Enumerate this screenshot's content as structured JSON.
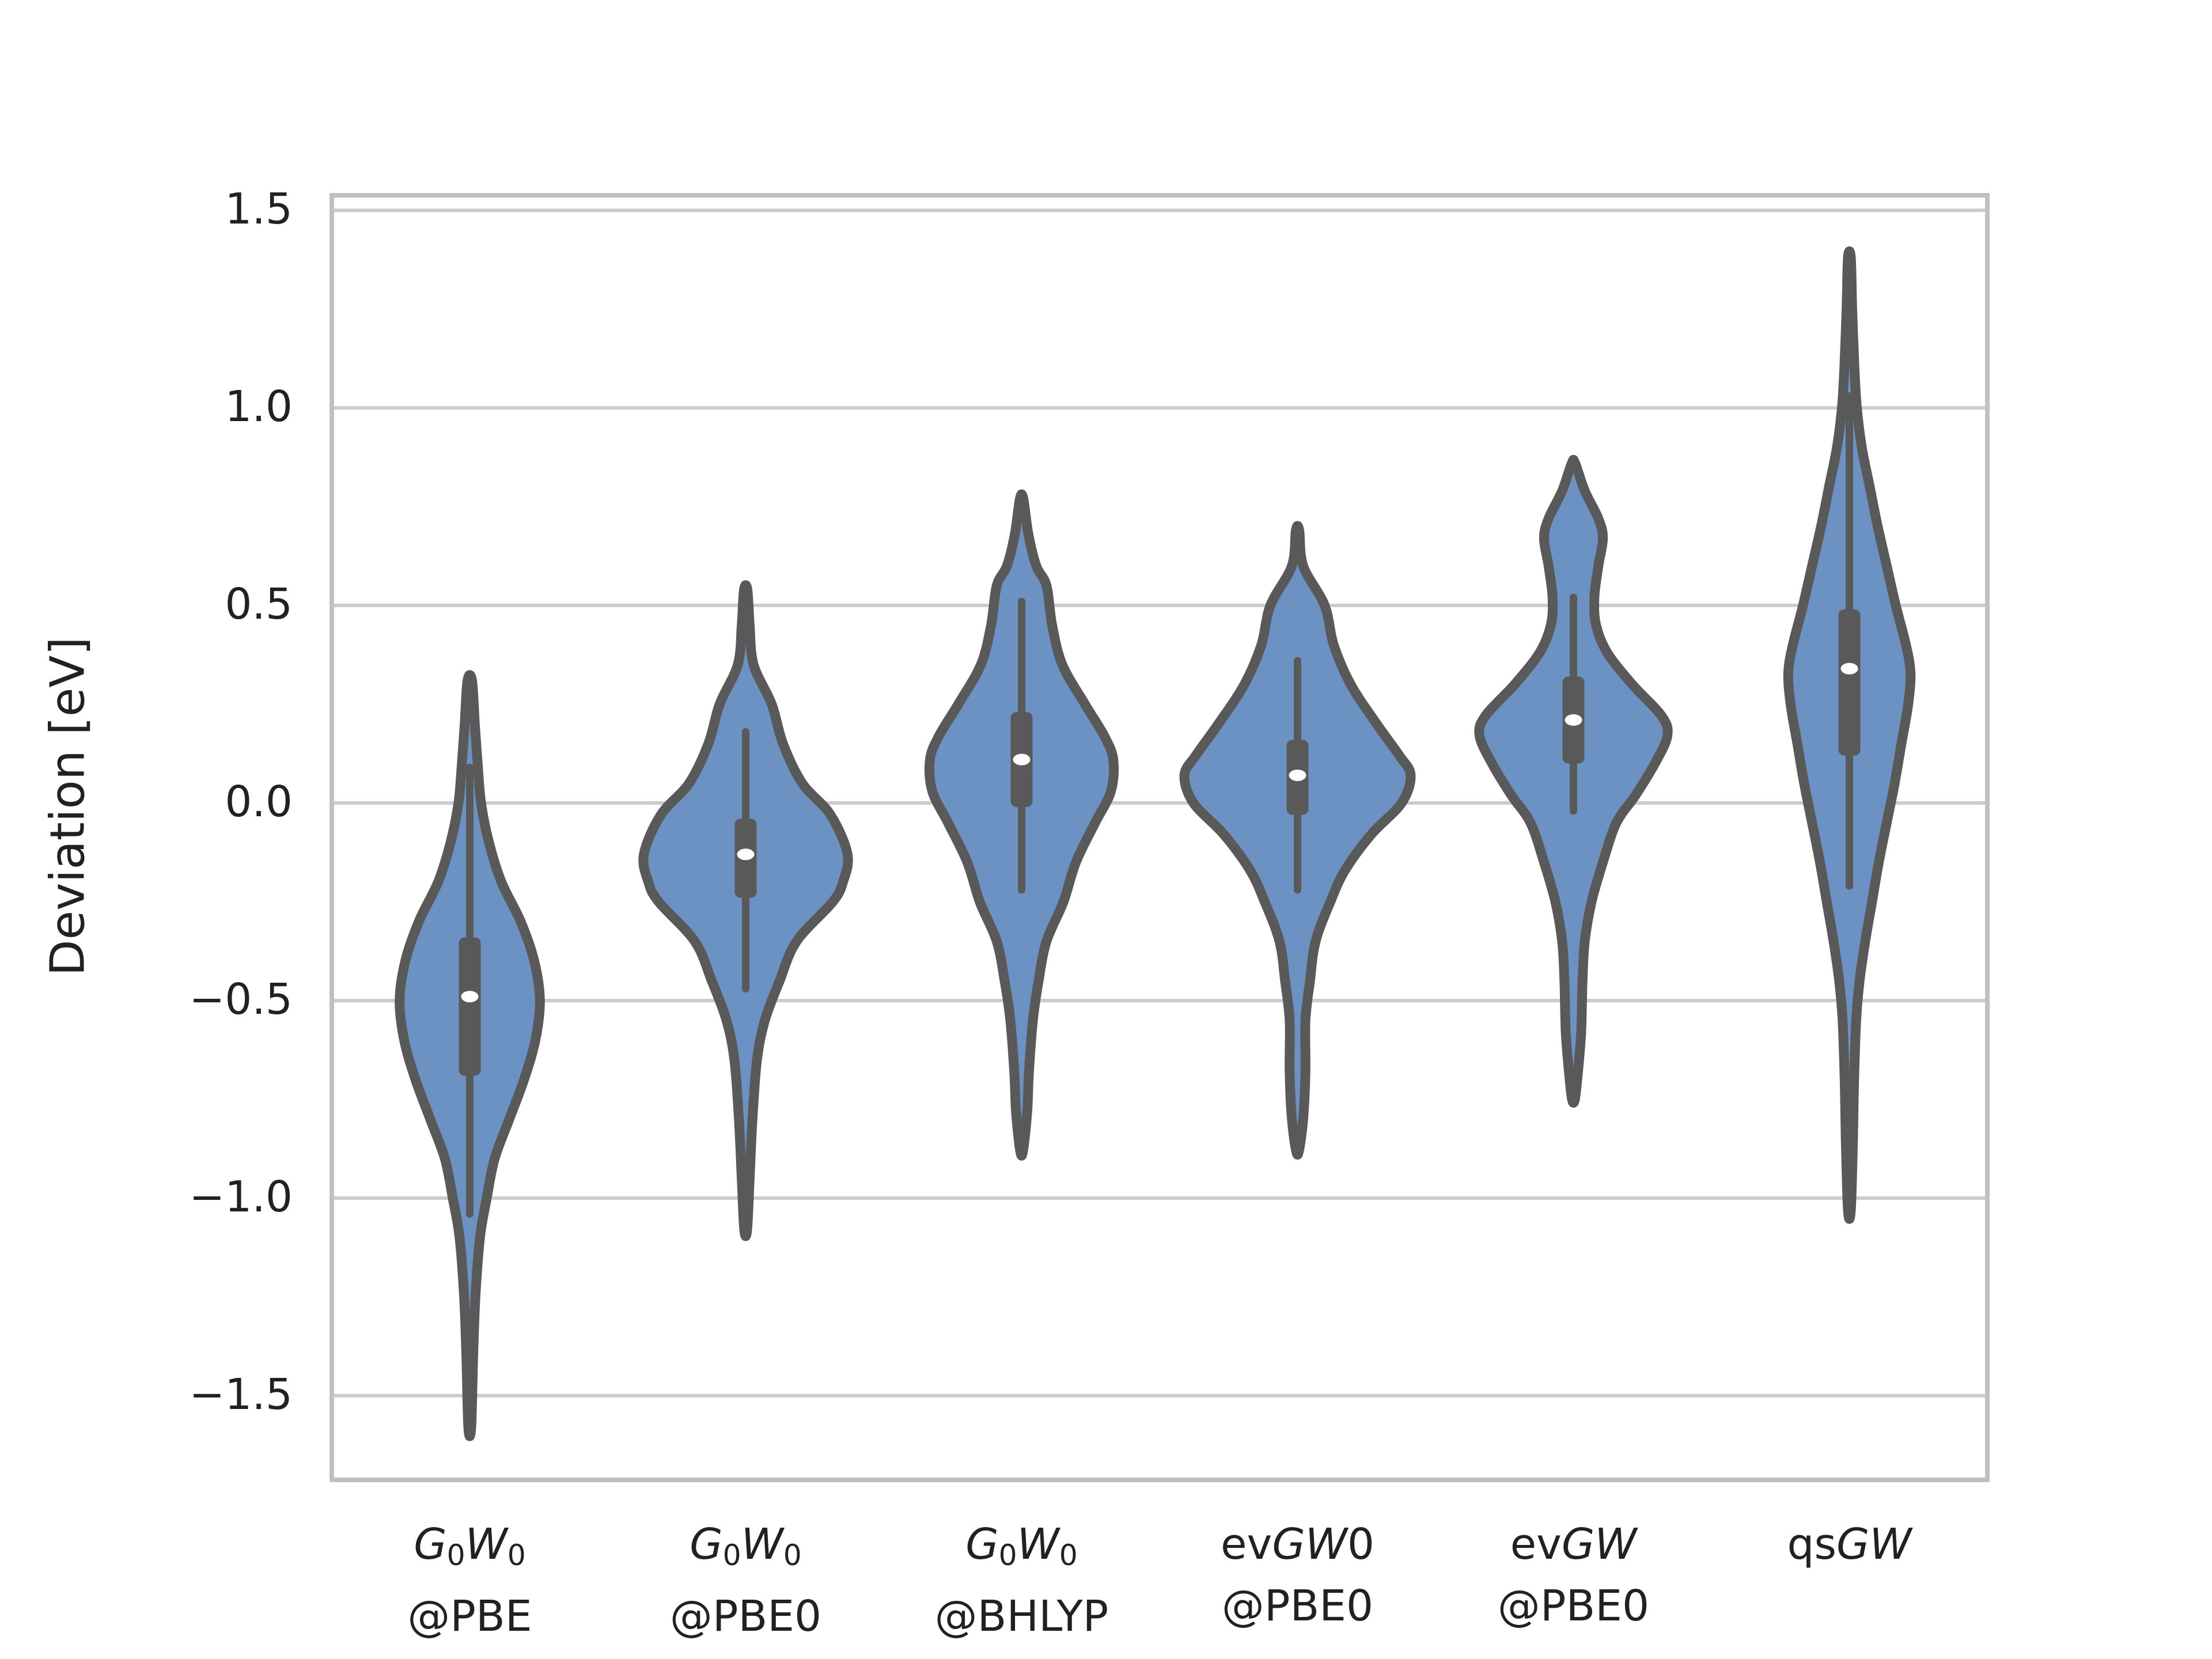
{
  "chart_data": {
    "type": "violin",
    "title": "",
    "ylabel": "Deviation [eV]",
    "xlabel": "",
    "grid": true,
    "legend": "none",
    "ylim": [
      -1.713,
      1.538
    ],
    "yticks": [
      1.5,
      1.0,
      0.5,
      0.0,
      -0.5,
      -1.0,
      -1.5
    ],
    "ytick_labels": [
      "1.5",
      "1.0",
      "0.5",
      "0.0",
      "−0.5",
      "−1.0",
      "−1.5"
    ],
    "categories": [
      "G0W0@PBE",
      "G0W0@PBE0",
      "G0W0@BHLYP",
      "evGW0@PBE0",
      "evGW@PBE0",
      "qsGW"
    ],
    "fill_color": "#6C92C4",
    "line_color": "#595959",
    "grid_color": "#CCCCCC",
    "spine_color": "#C0C0C0",
    "text_color": "#212121",
    "median_dot_color": "#FFFFFF",
    "series": [
      {
        "label_line1": [
          {
            "t": "G",
            "it": true
          },
          {
            "t": "0",
            "sub": true
          },
          {
            "t": "W",
            "it": true
          },
          {
            "t": "0",
            "sub": true
          }
        ],
        "label_line2": "@PBE",
        "stats": {
          "min": -1.58,
          "whisker_low": -1.04,
          "q1": -0.69,
          "median": -0.49,
          "q3": -0.34,
          "whisker_high": 0.09,
          "max": 0.31
        },
        "profile": [
          [
            0.31,
            0.02
          ],
          [
            0.2,
            0.045
          ],
          [
            0.1,
            0.07
          ],
          [
            0.0,
            0.1
          ],
          [
            -0.1,
            0.17
          ],
          [
            -0.2,
            0.28
          ],
          [
            -0.3,
            0.45
          ],
          [
            -0.4,
            0.57
          ],
          [
            -0.5,
            0.62
          ],
          [
            -0.6,
            0.58
          ],
          [
            -0.7,
            0.48
          ],
          [
            -0.8,
            0.35
          ],
          [
            -0.9,
            0.22
          ],
          [
            -1.0,
            0.15
          ],
          [
            -1.1,
            0.09
          ],
          [
            -1.25,
            0.05
          ],
          [
            -1.4,
            0.03
          ],
          [
            -1.58,
            0.012
          ]
        ]
      },
      {
        "label_line1": [
          {
            "t": "G",
            "it": true
          },
          {
            "t": "0",
            "sub": true
          },
          {
            "t": "W",
            "it": true
          },
          {
            "t": "0",
            "sub": true
          }
        ],
        "label_line2": "@PBE0",
        "stats": {
          "min": -1.08,
          "whisker_low": -0.47,
          "q1": -0.24,
          "median": -0.13,
          "q3": -0.04,
          "whisker_high": 0.18,
          "max": 0.54
        },
        "profile": [
          [
            0.54,
            0.015
          ],
          [
            0.45,
            0.035
          ],
          [
            0.35,
            0.07
          ],
          [
            0.25,
            0.23
          ],
          [
            0.15,
            0.33
          ],
          [
            0.05,
            0.5
          ],
          [
            -0.03,
            0.75
          ],
          [
            -0.13,
            0.9
          ],
          [
            -0.2,
            0.86
          ],
          [
            -0.25,
            0.77
          ],
          [
            -0.35,
            0.45
          ],
          [
            -0.45,
            0.3
          ],
          [
            -0.55,
            0.17
          ],
          [
            -0.65,
            0.1
          ],
          [
            -0.8,
            0.06
          ],
          [
            -0.95,
            0.035
          ],
          [
            -1.08,
            0.012
          ]
        ]
      },
      {
        "label_line1": [
          {
            "t": "G",
            "it": true
          },
          {
            "t": "0",
            "sub": true
          },
          {
            "t": "W",
            "it": true
          },
          {
            "t": "0",
            "sub": true
          }
        ],
        "label_line2": "@BHLYP",
        "stats": {
          "min": -0.88,
          "whisker_low": -0.22,
          "q1": -0.01,
          "median": 0.11,
          "q3": 0.23,
          "whisker_high": 0.51,
          "max": 0.77
        },
        "profile": [
          [
            0.77,
            0.015
          ],
          [
            0.68,
            0.06
          ],
          [
            0.6,
            0.13
          ],
          [
            0.55,
            0.22
          ],
          [
            0.45,
            0.27
          ],
          [
            0.35,
            0.36
          ],
          [
            0.25,
            0.56
          ],
          [
            0.17,
            0.73
          ],
          [
            0.11,
            0.81
          ],
          [
            0.03,
            0.79
          ],
          [
            -0.05,
            0.65
          ],
          [
            -0.15,
            0.48
          ],
          [
            -0.25,
            0.37
          ],
          [
            -0.35,
            0.22
          ],
          [
            -0.45,
            0.15
          ],
          [
            -0.55,
            0.1
          ],
          [
            -0.68,
            0.065
          ],
          [
            -0.78,
            0.05
          ],
          [
            -0.88,
            0.012
          ]
        ]
      },
      {
        "label_line1": [
          {
            "t": "ev"
          },
          {
            "t": "GW",
            "it": true
          },
          {
            "t": "0"
          }
        ],
        "label_line2": "@PBE0",
        "stats": {
          "min": -0.88,
          "whisker_low": -0.22,
          "q1": -0.03,
          "median": 0.07,
          "q3": 0.16,
          "whisker_high": 0.36,
          "max": 0.69
        },
        "profile": [
          [
            0.69,
            0.015
          ],
          [
            0.6,
            0.05
          ],
          [
            0.5,
            0.24
          ],
          [
            0.4,
            0.32
          ],
          [
            0.3,
            0.47
          ],
          [
            0.2,
            0.7
          ],
          [
            0.12,
            0.9
          ],
          [
            0.07,
            1.0
          ],
          [
            0.0,
            0.92
          ],
          [
            -0.08,
            0.65
          ],
          [
            -0.17,
            0.42
          ],
          [
            -0.25,
            0.29
          ],
          [
            -0.35,
            0.16
          ],
          [
            -0.45,
            0.11
          ],
          [
            -0.55,
            0.07
          ],
          [
            -0.68,
            0.07
          ],
          [
            -0.8,
            0.05
          ],
          [
            -0.88,
            0.012
          ]
        ]
      },
      {
        "label_line1": [
          {
            "t": "ev"
          },
          {
            "t": "GW",
            "it": true
          }
        ],
        "label_line2": "@PBE0",
        "stats": {
          "min": -0.75,
          "whisker_low": -0.02,
          "q1": 0.1,
          "median": 0.21,
          "q3": 0.32,
          "whisker_high": 0.52,
          "max": 0.86
        },
        "profile": [
          [
            0.86,
            0.015
          ],
          [
            0.79,
            0.1
          ],
          [
            0.72,
            0.22
          ],
          [
            0.67,
            0.26
          ],
          [
            0.6,
            0.22
          ],
          [
            0.52,
            0.185
          ],
          [
            0.45,
            0.2
          ],
          [
            0.38,
            0.3
          ],
          [
            0.3,
            0.52
          ],
          [
            0.22,
            0.78
          ],
          [
            0.17,
            0.83
          ],
          [
            0.1,
            0.72
          ],
          [
            0.02,
            0.55
          ],
          [
            -0.05,
            0.38
          ],
          [
            -0.15,
            0.26
          ],
          [
            -0.25,
            0.16
          ],
          [
            -0.35,
            0.1
          ],
          [
            -0.45,
            0.08
          ],
          [
            -0.58,
            0.068
          ],
          [
            -0.68,
            0.04
          ],
          [
            -0.75,
            0.012
          ]
        ]
      },
      {
        "label_line1": [
          {
            "t": "qs"
          },
          {
            "t": "GW",
            "it": true
          }
        ],
        "label_line2": "",
        "stats": {
          "min": -1.03,
          "whisker_low": -0.21,
          "q1": 0.12,
          "median": 0.34,
          "q3": 0.49,
          "whisker_high": 1.03,
          "max": 1.38
        },
        "profile": [
          [
            1.38,
            0.012
          ],
          [
            1.25,
            0.025
          ],
          [
            1.1,
            0.045
          ],
          [
            1.0,
            0.066
          ],
          [
            0.9,
            0.11
          ],
          [
            0.8,
            0.18
          ],
          [
            0.7,
            0.25
          ],
          [
            0.6,
            0.33
          ],
          [
            0.5,
            0.41
          ],
          [
            0.4,
            0.5
          ],
          [
            0.33,
            0.54
          ],
          [
            0.25,
            0.52
          ],
          [
            0.15,
            0.46
          ],
          [
            0.05,
            0.4
          ],
          [
            -0.05,
            0.33
          ],
          [
            -0.15,
            0.26
          ],
          [
            -0.25,
            0.2
          ],
          [
            -0.35,
            0.14
          ],
          [
            -0.45,
            0.09
          ],
          [
            -0.55,
            0.06
          ],
          [
            -0.7,
            0.042
          ],
          [
            -0.85,
            0.032
          ],
          [
            -1.03,
            0.012
          ]
        ]
      }
    ]
  }
}
